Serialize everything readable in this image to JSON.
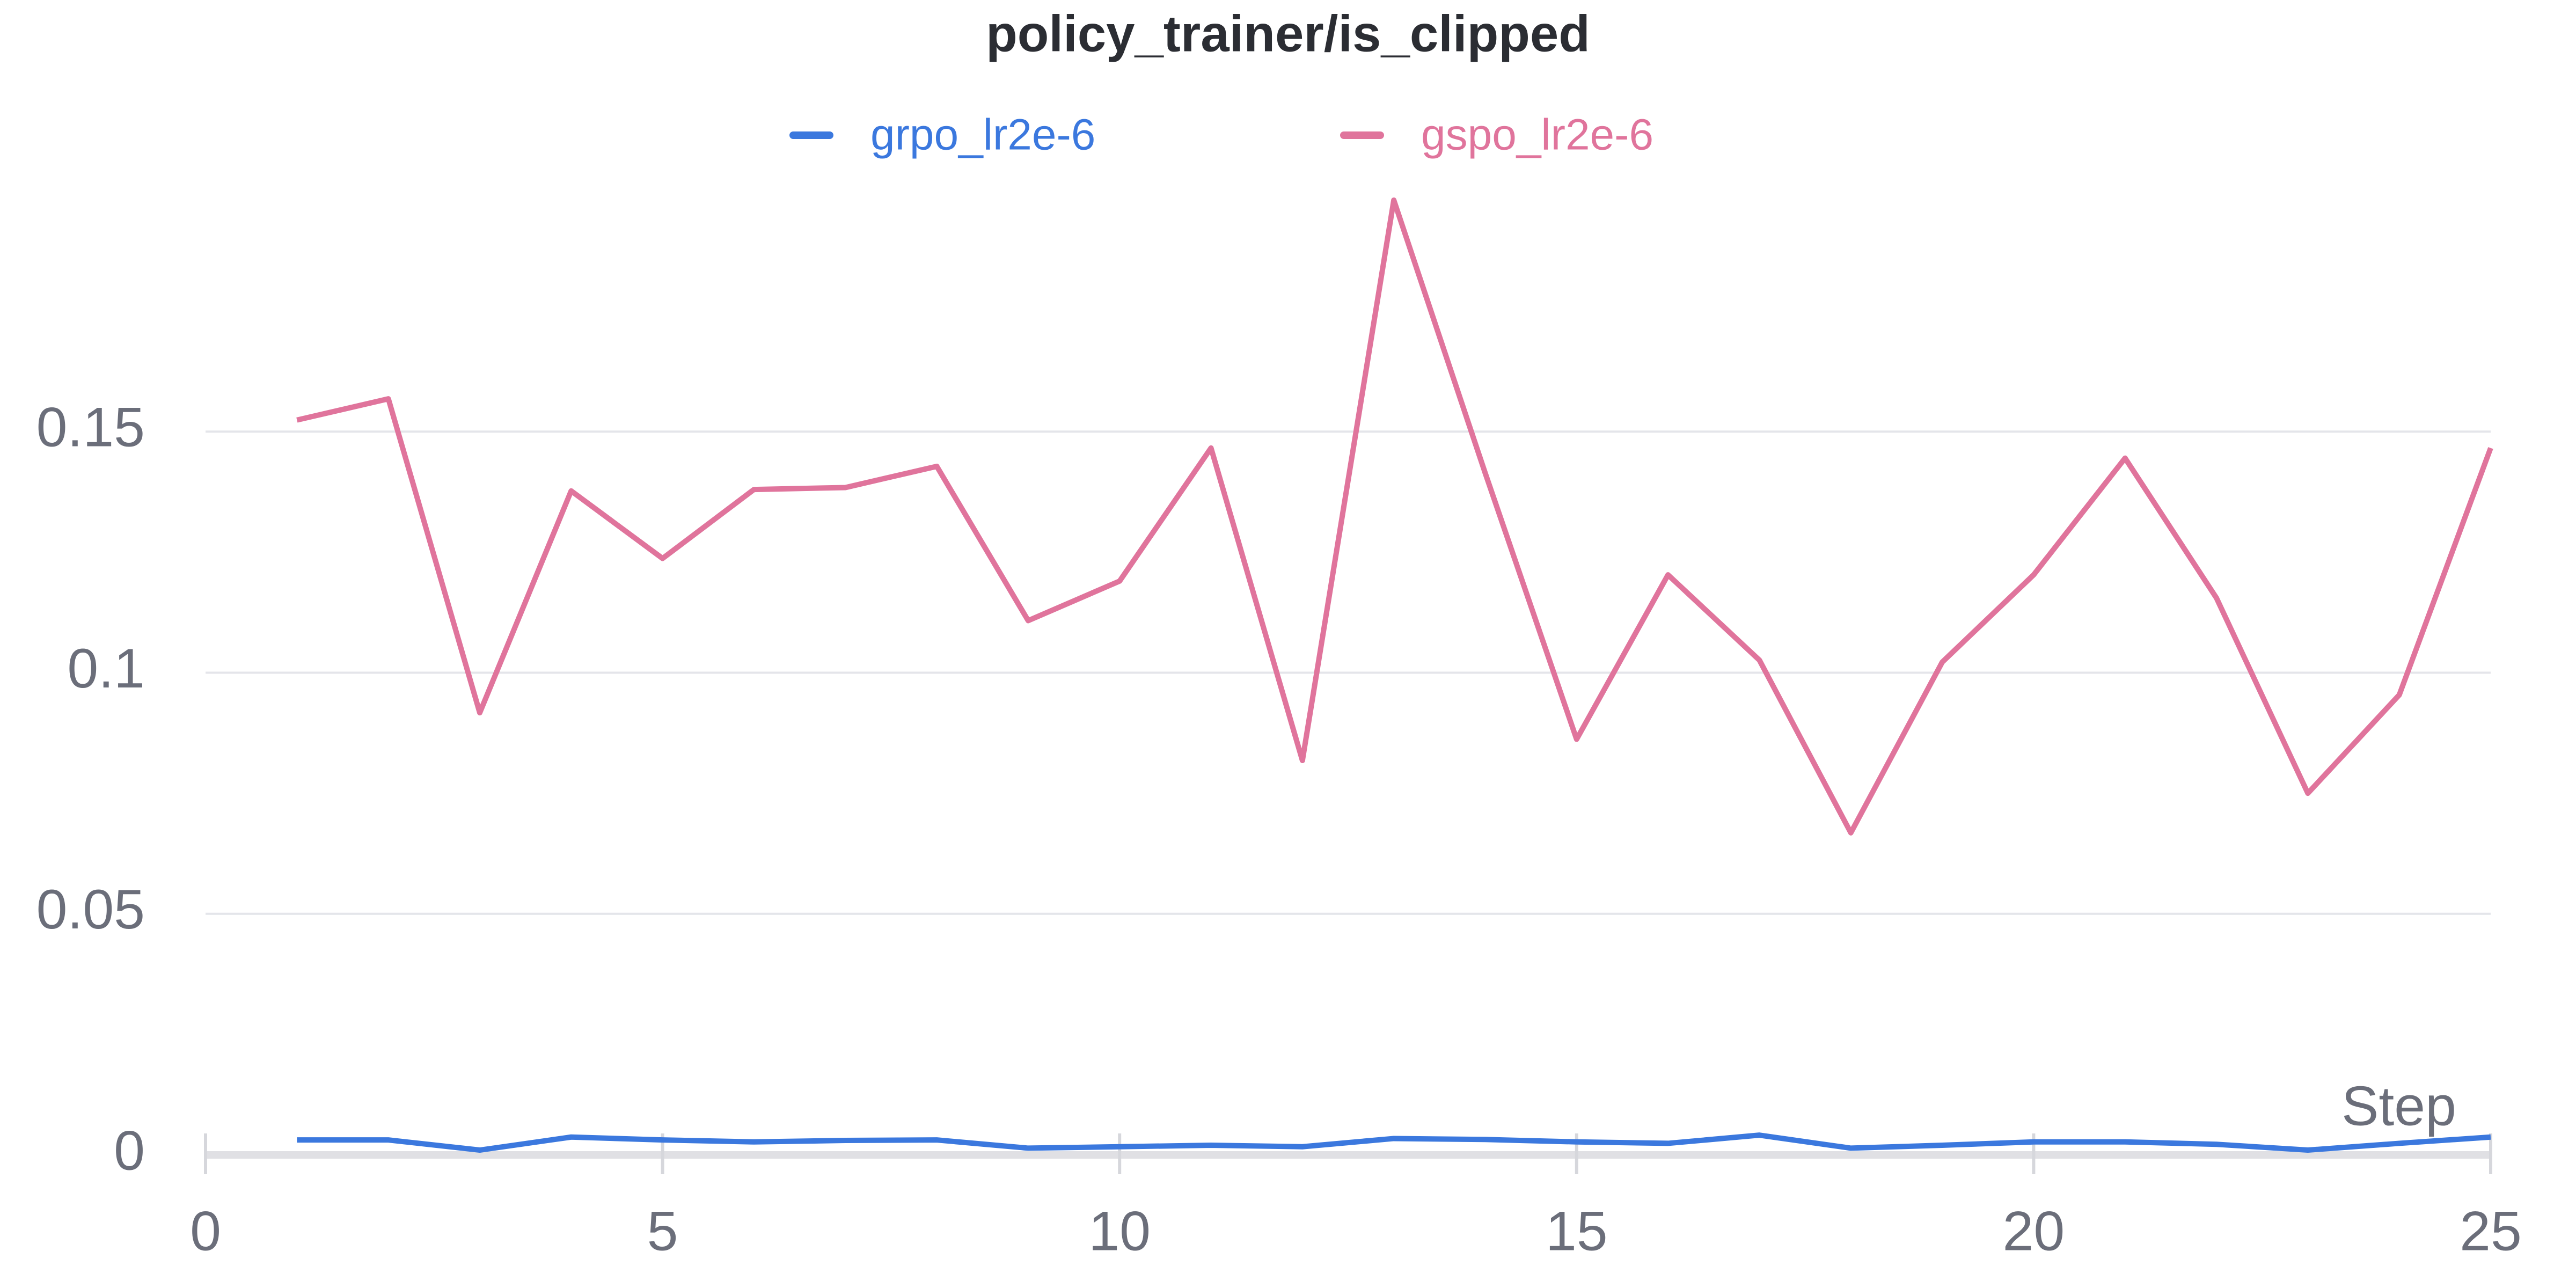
{
  "chart_data": {
    "type": "line",
    "title": "policy_trainer/is_clipped",
    "x_label": "Step",
    "x": [
      1,
      2,
      3,
      4,
      5,
      6,
      7,
      8,
      9,
      10,
      11,
      12,
      13,
      14,
      15,
      16,
      17,
      18,
      19,
      20,
      21,
      22,
      23,
      24,
      25
    ],
    "series": [
      {
        "name": "grpo_lr2e-6",
        "color": "#3b78de",
        "values": [
          0.0031,
          0.0031,
          0.001,
          0.0037,
          0.0031,
          0.0027,
          0.003,
          0.0031,
          0.0014,
          0.0017,
          0.002,
          0.0017,
          0.0034,
          0.0032,
          0.0027,
          0.0024,
          0.0041,
          0.0014,
          0.002,
          0.0027,
          0.0027,
          0.0022,
          0.001,
          0.0024,
          0.0037
        ]
      },
      {
        "name": "gspo_lr2e-6",
        "color": "#e0749c",
        "values": [
          0.1524,
          0.1568,
          0.0917,
          0.1377,
          0.1237,
          0.138,
          0.1384,
          0.1428,
          0.1108,
          0.119,
          0.1466,
          0.0818,
          0.198,
          0.1414,
          0.0862,
          0.1203,
          0.1026,
          0.0668,
          0.1022,
          0.1203,
          0.1445,
          0.1155,
          0.075,
          0.0954,
          0.1466
        ]
      }
    ],
    "xlim": [
      0,
      25
    ],
    "xticks": [
      0,
      5,
      10,
      15,
      20,
      25
    ],
    "ylim": [
      0,
      0.2
    ],
    "yticks": [
      0,
      0.05,
      0.1,
      0.15
    ],
    "grid": true
  }
}
